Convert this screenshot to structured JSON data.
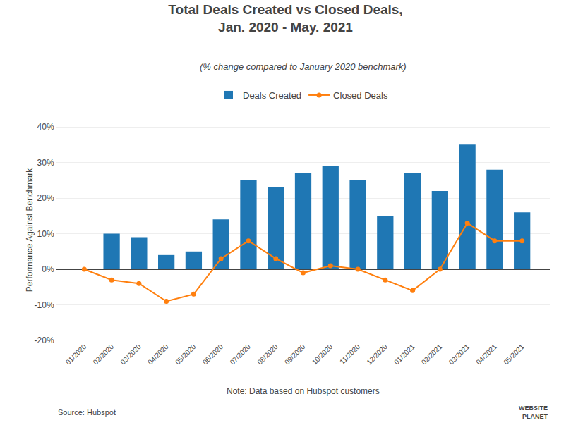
{
  "chart_data": {
    "type": "bar",
    "title": "Total Deals Created vs Closed Deals,\nJan. 2020 - May. 2021",
    "subtitle": "(% change compared to January 2020 benchmark)",
    "ylabel": "Performance Against Benchmark",
    "categories": [
      "01/2020",
      "02/2020",
      "03/2020",
      "04/2020",
      "05/2020",
      "06/2020",
      "07/2020",
      "08/2020",
      "09/2020",
      "10/2020",
      "11/2020",
      "12/2020",
      "01/2021",
      "02/2021",
      "03/2021",
      "04/2021",
      "05/2021"
    ],
    "series": [
      {
        "name": "Deals Created",
        "type": "bar",
        "values": [
          0,
          10,
          9,
          4,
          5,
          14,
          25,
          23,
          27,
          29,
          25,
          15,
          27,
          22,
          35,
          28,
          16
        ]
      },
      {
        "name": "Closed Deals",
        "type": "line",
        "marker": "circle",
        "values": [
          0,
          -3,
          -4,
          -9,
          -7,
          3,
          8,
          3,
          -1,
          1,
          0,
          -3,
          -6,
          0,
          13,
          8,
          8
        ]
      }
    ],
    "ylim": [
      -20,
      42
    ],
    "yticks": [
      {
        "value": -20,
        "label": "-20%"
      },
      {
        "value": -10,
        "label": "-10%"
      },
      {
        "value": 0,
        "label": "0%"
      },
      {
        "value": 10,
        "label": "10%"
      },
      {
        "value": 20,
        "label": "20%"
      },
      {
        "value": 30,
        "label": "30%"
      },
      {
        "value": 40,
        "label": "40%"
      }
    ],
    "grid": true,
    "legend": "top",
    "annotations": [
      "Note: Data based on Hubspot customers",
      "Source: Hubspot",
      "WEBSITE\nPLANET"
    ]
  }
}
